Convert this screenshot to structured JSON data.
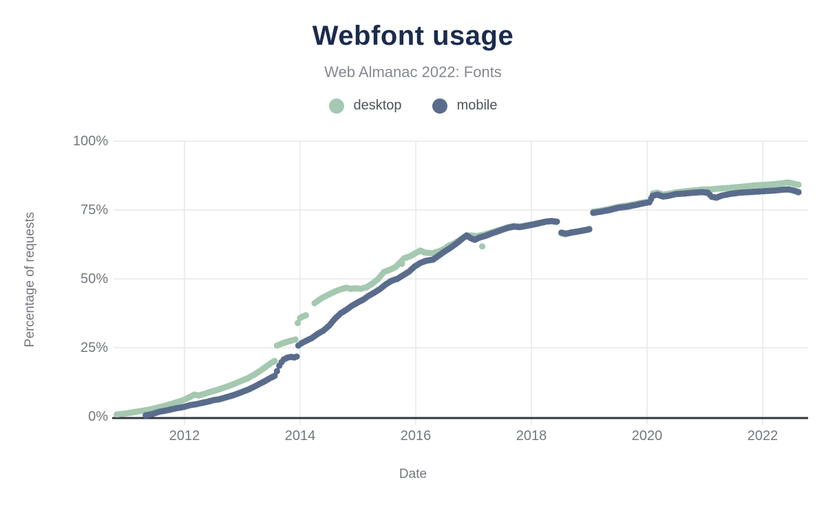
{
  "chart": {
    "title": "Webfont usage",
    "subtitle": "Web Almanac 2022: Fonts",
    "xlabel": "Date",
    "ylabel": "Percentage of requests",
    "legend": [
      {
        "label": "desktop",
        "color": "#a4c8b0"
      },
      {
        "label": "mobile",
        "color": "#5a6c8c"
      }
    ]
  },
  "theme": {
    "title_color": "#1b2b4e",
    "subtitle_color": "#85898f",
    "tick_color": "#74787e",
    "grid_color": "#e5e7e9",
    "axis_line_color": "#33373c",
    "background": "#ffffff"
  },
  "chart_data": {
    "type": "scatter",
    "title": "Webfont usage",
    "subtitle": "Web Almanac 2022: Fonts",
    "xlabel": "Date",
    "ylabel": "Percentage of requests",
    "x_unit": "decimal_year",
    "y_unit": "percent",
    "xlim": [
      2010.7,
      2022.8
    ],
    "ylim": [
      0,
      100
    ],
    "grid": true,
    "legend_position": "top",
    "x_ticks": [
      {
        "value": 2012,
        "label": "2012"
      },
      {
        "value": 2014,
        "label": "2014"
      },
      {
        "value": 2016,
        "label": "2016"
      },
      {
        "value": 2018,
        "label": "2018"
      },
      {
        "value": 2020,
        "label": "2020"
      },
      {
        "value": 2022,
        "label": "2022"
      }
    ],
    "y_ticks": [
      {
        "value": 0,
        "label": "0%"
      },
      {
        "value": 25,
        "label": "25%"
      },
      {
        "value": 50,
        "label": "50%"
      },
      {
        "value": 75,
        "label": "75%"
      },
      {
        "value": 100,
        "label": "100%"
      }
    ],
    "series": [
      {
        "name": "desktop",
        "color": "#a4c8b0",
        "segments": [
          [
            [
              2010.83,
              0.8
            ],
            [
              2011.0,
              1.2
            ],
            [
              2011.2,
              1.9
            ],
            [
              2011.4,
              2.6
            ],
            [
              2011.6,
              3.6
            ],
            [
              2011.8,
              4.8
            ],
            [
              2011.95,
              5.8
            ],
            [
              2012.0,
              6.2
            ],
            [
              2012.1,
              7.2
            ],
            [
              2012.17,
              8.0
            ],
            [
              2012.25,
              7.7
            ],
            [
              2012.35,
              8.3
            ],
            [
              2012.45,
              9.0
            ],
            [
              2012.55,
              9.6
            ],
            [
              2012.65,
              10.3
            ],
            [
              2012.75,
              11.0
            ],
            [
              2012.85,
              11.8
            ],
            [
              2012.95,
              12.7
            ],
            [
              2013.1,
              14.0
            ],
            [
              2013.2,
              15.2
            ],
            [
              2013.3,
              16.5
            ],
            [
              2013.4,
              18.0
            ],
            [
              2013.5,
              19.5
            ],
            [
              2013.56,
              20.2
            ]
          ],
          [
            [
              2013.6,
              25.8
            ],
            [
              2013.68,
              26.5
            ],
            [
              2013.78,
              27.2
            ],
            [
              2013.88,
              27.8
            ],
            [
              2013.92,
              28.0
            ]
          ],
          [
            [
              2013.96,
              34.0
            ],
            [
              2014.0,
              35.8
            ],
            [
              2014.04,
              36.3
            ],
            [
              2014.1,
              36.8
            ]
          ],
          [
            [
              2014.25,
              41.2
            ],
            [
              2014.37,
              43.0
            ],
            [
              2014.49,
              44.3
            ],
            [
              2014.61,
              45.5
            ],
            [
              2014.7,
              46.2
            ],
            [
              2014.8,
              46.8
            ],
            [
              2014.88,
              46.4
            ],
            [
              2014.95,
              46.6
            ],
            [
              2015.05,
              46.4
            ],
            [
              2015.15,
              47.0
            ],
            [
              2015.25,
              48.3
            ],
            [
              2015.35,
              50.0
            ],
            [
              2015.45,
              52.5
            ],
            [
              2015.55,
              53.3
            ],
            [
              2015.65,
              54.3
            ],
            [
              2015.72,
              55.8
            ],
            [
              2015.8,
              57.5
            ],
            [
              2015.9,
              58.2
            ],
            [
              2016.0,
              59.4
            ],
            [
              2016.08,
              60.3
            ],
            [
              2016.15,
              59.6
            ],
            [
              2016.28,
              59.3
            ],
            [
              2016.4,
              60.0
            ],
            [
              2016.5,
              61.0
            ],
            [
              2016.55,
              61.8
            ],
            [
              2016.65,
              62.8
            ],
            [
              2016.75,
              64.0
            ],
            [
              2016.85,
              65.4
            ],
            [
              2016.95,
              65.8
            ],
            [
              2017.05,
              65.5
            ],
            [
              2017.2,
              66.2
            ],
            [
              2017.3,
              66.8
            ],
            [
              2017.45,
              67.8
            ],
            [
              2017.6,
              68.8
            ],
            [
              2017.7,
              69.2
            ],
            [
              2017.8,
              69.0
            ],
            [
              2017.95,
              69.6
            ],
            [
              2018.05,
              70.0
            ],
            [
              2018.15,
              70.4
            ],
            [
              2018.25,
              70.8
            ],
            [
              2018.35,
              71.0
            ],
            [
              2018.42,
              70.6
            ]
          ],
          [
            [
              2018.52,
              66.5
            ],
            [
              2018.58,
              66.2
            ],
            [
              2018.65,
              66.6
            ],
            [
              2018.75,
              67.0
            ],
            [
              2018.85,
              67.4
            ],
            [
              2018.95,
              67.8
            ],
            [
              2019.0,
              68.2
            ]
          ],
          [
            [
              2019.07,
              74.4
            ],
            [
              2019.2,
              74.8
            ],
            [
              2019.35,
              75.4
            ],
            [
              2019.5,
              76.2
            ],
            [
              2019.65,
              76.6
            ],
            [
              2019.8,
              77.2
            ],
            [
              2019.95,
              77.8
            ],
            [
              2020.04,
              78.0
            ],
            [
              2020.1,
              81.0
            ],
            [
              2020.18,
              81.3
            ],
            [
              2020.28,
              80.6
            ],
            [
              2020.38,
              80.9
            ],
            [
              2020.5,
              81.4
            ],
            [
              2020.65,
              81.8
            ],
            [
              2020.8,
              82.1
            ],
            [
              2020.95,
              82.4
            ],
            [
              2021.1,
              82.5
            ],
            [
              2021.25,
              82.8
            ],
            [
              2021.4,
              83.0
            ],
            [
              2021.55,
              83.3
            ],
            [
              2021.7,
              83.6
            ],
            [
              2021.85,
              83.9
            ],
            [
              2022.0,
              84.1
            ],
            [
              2022.15,
              84.3
            ],
            [
              2022.3,
              84.6
            ],
            [
              2022.42,
              85.0
            ],
            [
              2022.5,
              84.8
            ],
            [
              2022.56,
              84.4
            ],
            [
              2022.62,
              84.2
            ]
          ]
        ],
        "outliers": [
          [
            2015.76,
            55.5
          ],
          [
            2017.15,
            61.8
          ]
        ]
      },
      {
        "name": "mobile",
        "color": "#5a6c8c",
        "segments": [
          [
            [
              2011.33,
              0.5
            ],
            [
              2011.45,
              1.0
            ],
            [
              2011.57,
              1.8
            ],
            [
              2011.7,
              2.3
            ],
            [
              2011.8,
              2.8
            ],
            [
              2011.9,
              3.2
            ],
            [
              2012.0,
              3.6
            ],
            [
              2012.1,
              4.2
            ],
            [
              2012.2,
              4.5
            ],
            [
              2012.3,
              5.0
            ],
            [
              2012.4,
              5.4
            ],
            [
              2012.5,
              6.0
            ],
            [
              2012.6,
              6.3
            ],
            [
              2012.7,
              6.9
            ],
            [
              2012.8,
              7.5
            ],
            [
              2012.9,
              8.2
            ],
            [
              2013.0,
              9.0
            ],
            [
              2013.1,
              9.8
            ],
            [
              2013.2,
              10.8
            ],
            [
              2013.3,
              11.9
            ],
            [
              2013.4,
              13.0
            ],
            [
              2013.5,
              14.2
            ],
            [
              2013.56,
              14.8
            ]
          ],
          [
            [
              2013.6,
              16.5
            ],
            [
              2013.64,
              18.5
            ],
            [
              2013.68,
              19.8
            ],
            [
              2013.72,
              20.8
            ],
            [
              2013.78,
              21.4
            ],
            [
              2013.84,
              21.7
            ],
            [
              2013.9,
              21.5
            ],
            [
              2013.94,
              21.8
            ]
          ],
          [
            [
              2013.97,
              25.8
            ],
            [
              2014.02,
              26.6
            ],
            [
              2014.1,
              27.5
            ],
            [
              2014.2,
              28.5
            ],
            [
              2014.3,
              30.0
            ],
            [
              2014.4,
              31.2
            ],
            [
              2014.5,
              33.0
            ],
            [
              2014.6,
              35.5
            ],
            [
              2014.7,
              37.5
            ],
            [
              2014.8,
              38.8
            ],
            [
              2014.9,
              40.3
            ],
            [
              2015.0,
              41.5
            ],
            [
              2015.1,
              42.6
            ],
            [
              2015.18,
              43.8
            ],
            [
              2015.28,
              45.0
            ],
            [
              2015.38,
              46.3
            ],
            [
              2015.48,
              48.0
            ],
            [
              2015.58,
              49.3
            ],
            [
              2015.68,
              50.0
            ],
            [
              2015.78,
              51.3
            ],
            [
              2015.88,
              52.6
            ],
            [
              2015.98,
              54.5
            ],
            [
              2016.08,
              55.8
            ],
            [
              2016.18,
              56.6
            ],
            [
              2016.3,
              57.0
            ],
            [
              2016.4,
              58.5
            ],
            [
              2016.5,
              60.0
            ],
            [
              2016.6,
              61.3
            ],
            [
              2016.7,
              62.8
            ],
            [
              2016.8,
              64.5
            ],
            [
              2016.88,
              65.8
            ],
            [
              2016.95,
              64.8
            ],
            [
              2017.02,
              64.2
            ],
            [
              2017.1,
              65.0
            ],
            [
              2017.2,
              65.6
            ],
            [
              2017.3,
              66.4
            ],
            [
              2017.45,
              67.5
            ],
            [
              2017.6,
              68.6
            ],
            [
              2017.7,
              69.0
            ],
            [
              2017.8,
              68.8
            ],
            [
              2017.95,
              69.4
            ],
            [
              2018.05,
              69.8
            ],
            [
              2018.15,
              70.3
            ],
            [
              2018.25,
              70.8
            ],
            [
              2018.35,
              71.0
            ],
            [
              2018.44,
              70.8
            ]
          ],
          [
            [
              2018.52,
              66.8
            ],
            [
              2018.6,
              66.4
            ],
            [
              2018.7,
              66.9
            ],
            [
              2018.8,
              67.2
            ],
            [
              2018.9,
              67.6
            ],
            [
              2019.0,
              68.0
            ]
          ],
          [
            [
              2019.07,
              74.0
            ],
            [
              2019.2,
              74.4
            ],
            [
              2019.35,
              75.0
            ],
            [
              2019.5,
              75.8
            ],
            [
              2019.65,
              76.2
            ],
            [
              2019.8,
              76.8
            ],
            [
              2019.95,
              77.5
            ],
            [
              2020.04,
              77.8
            ],
            [
              2020.1,
              80.2
            ],
            [
              2020.18,
              80.6
            ],
            [
              2020.28,
              79.9
            ],
            [
              2020.38,
              80.2
            ],
            [
              2020.5,
              80.8
            ],
            [
              2020.65,
              81.0
            ],
            [
              2020.8,
              81.3
            ],
            [
              2020.95,
              81.5
            ],
            [
              2021.05,
              81.3
            ],
            [
              2021.12,
              79.8
            ],
            [
              2021.2,
              79.5
            ],
            [
              2021.3,
              80.3
            ],
            [
              2021.45,
              80.9
            ],
            [
              2021.6,
              81.3
            ],
            [
              2021.75,
              81.5
            ],
            [
              2021.9,
              81.7
            ],
            [
              2022.05,
              81.9
            ],
            [
              2022.2,
              82.1
            ],
            [
              2022.35,
              82.4
            ],
            [
              2022.45,
              82.5
            ],
            [
              2022.55,
              82.0
            ],
            [
              2022.62,
              81.5
            ]
          ]
        ],
        "outliers": []
      }
    ]
  }
}
